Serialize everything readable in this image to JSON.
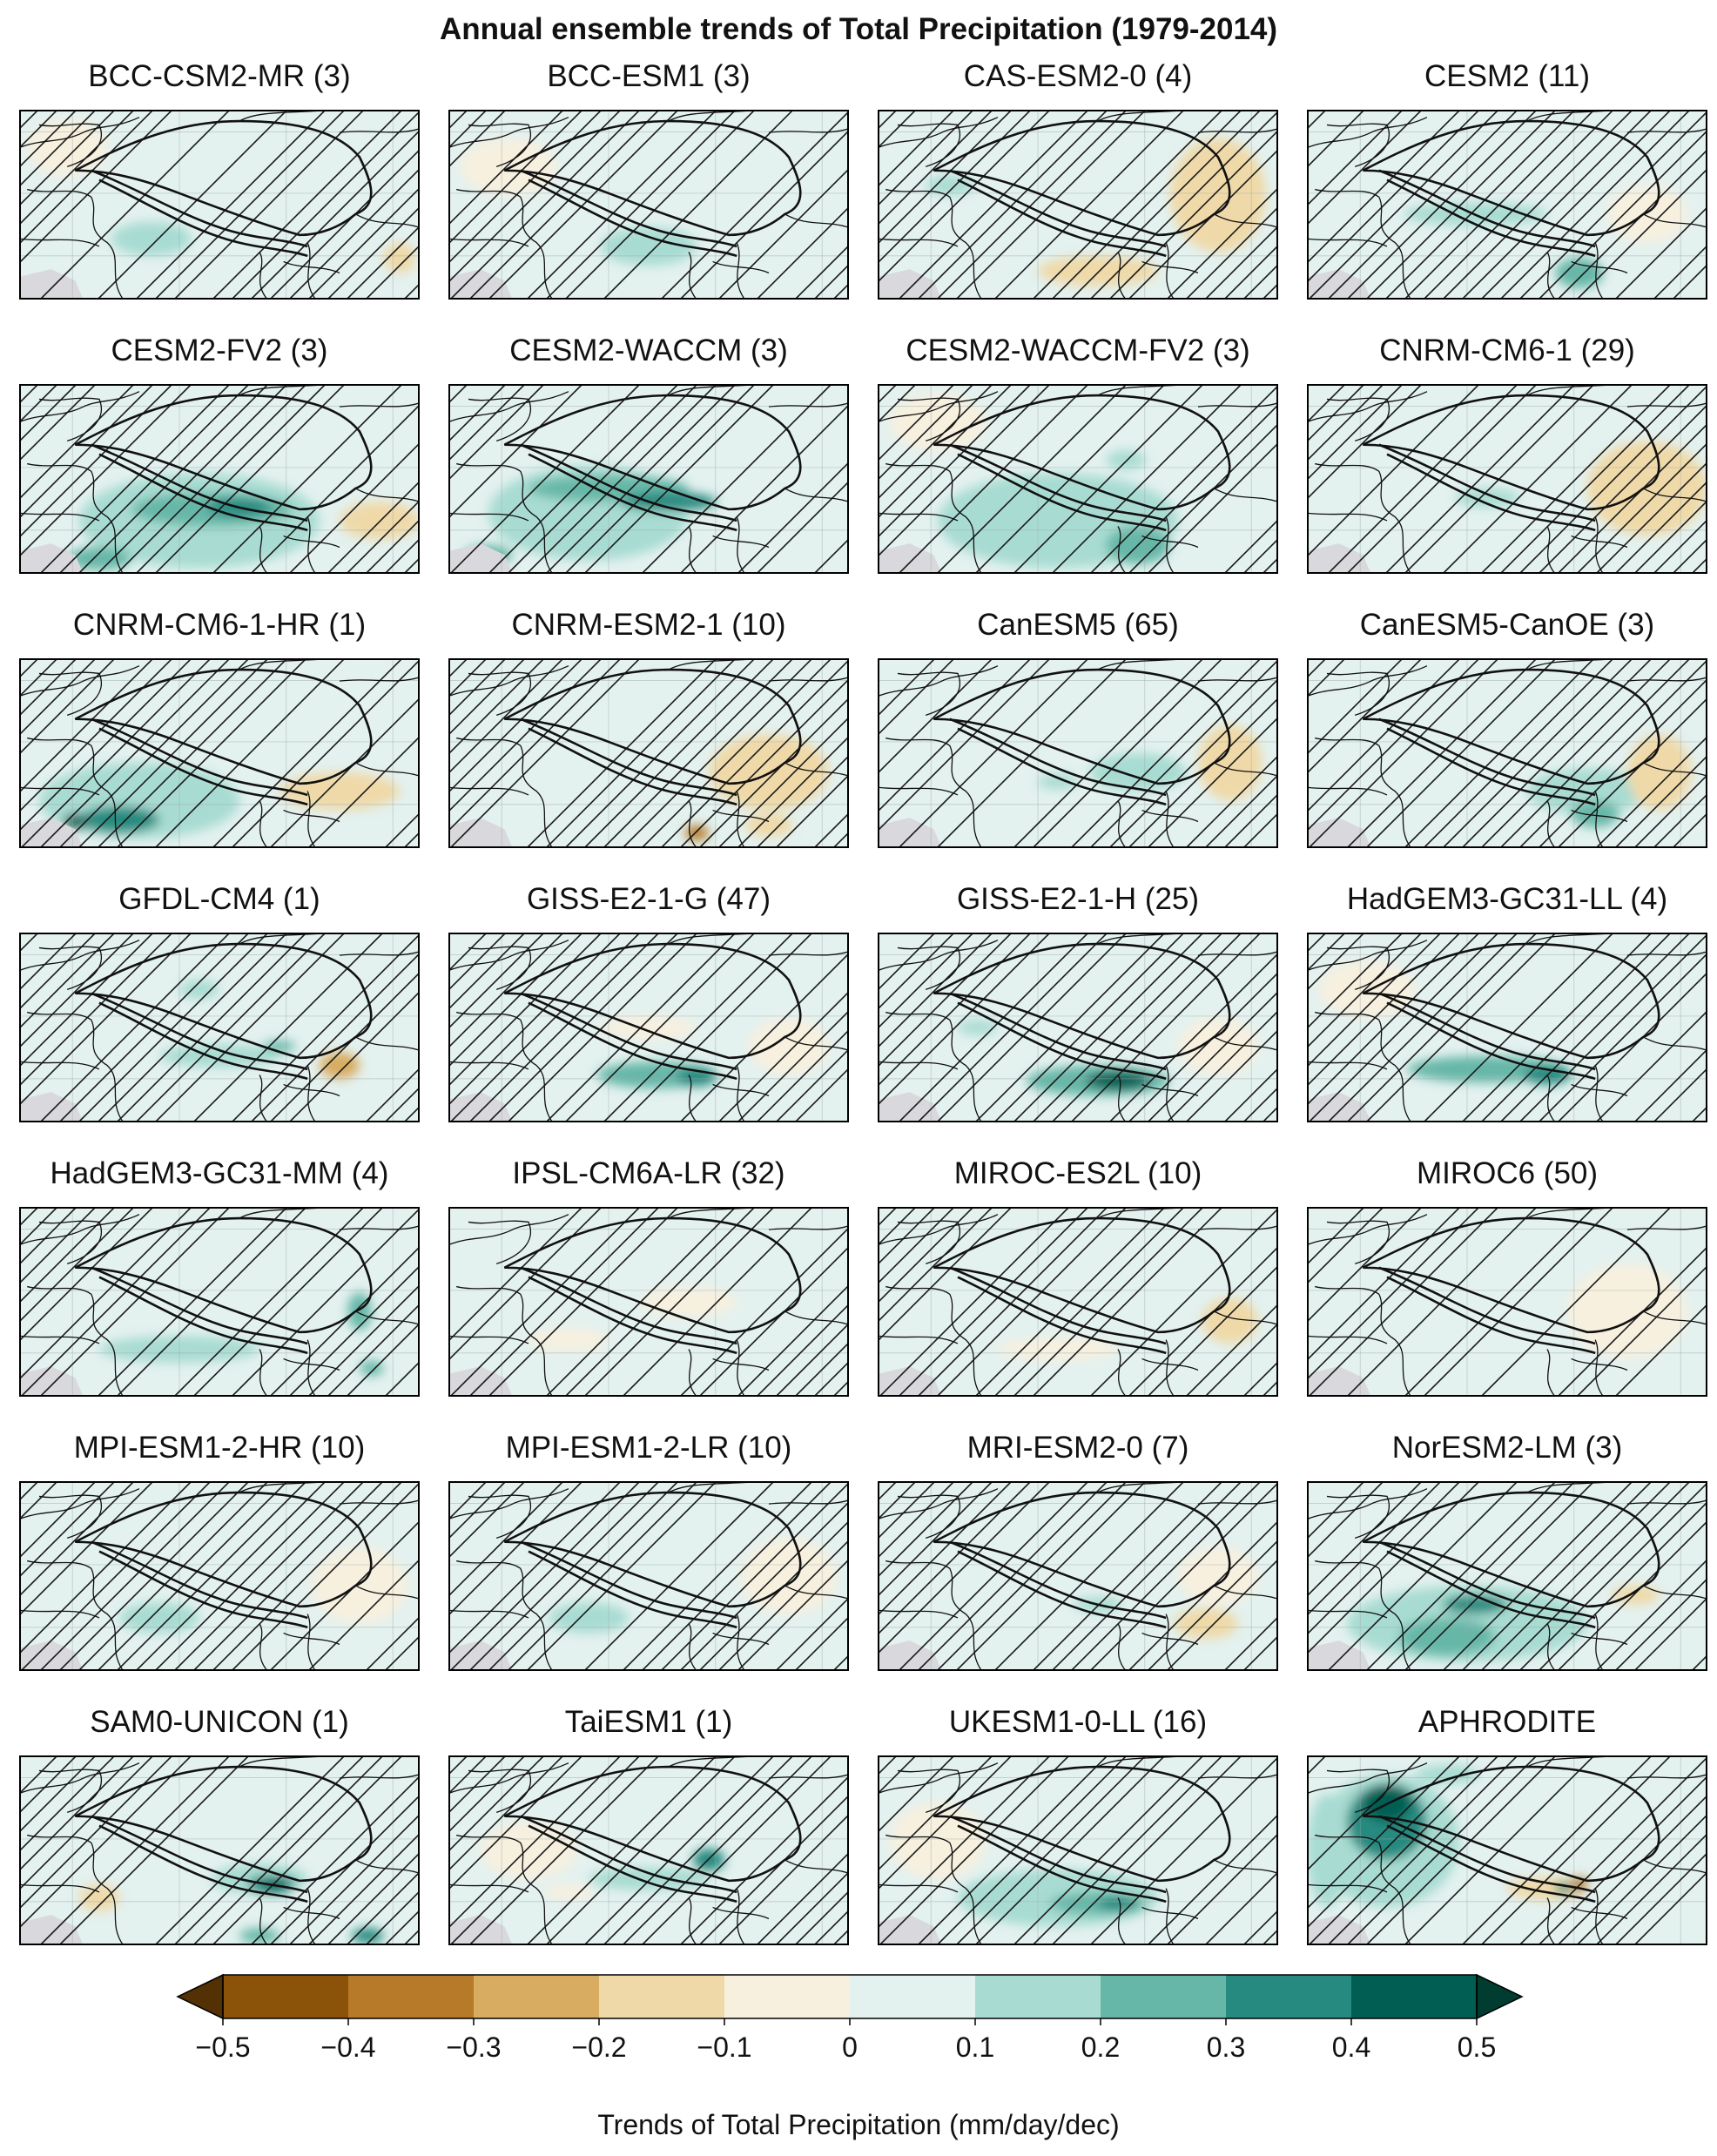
{
  "figure_title": "Annual ensemble trends of Total Precipitation (1979-2014)",
  "colorbar": {
    "label": "Trends of Total Precipitation (mm/day/dec)",
    "ticks": [
      "−0.5",
      "−0.4",
      "−0.3",
      "−0.2",
      "−0.1",
      "0",
      "0.1",
      "0.2",
      "0.3",
      "0.4",
      "0.5"
    ],
    "colors": [
      "#8a5309",
      "#b67a29",
      "#d8ac61",
      "#efd9a8",
      "#f7f0df",
      "#e3f1ef",
      "#a8dcd2",
      "#66b7a8",
      "#268a80",
      "#015e52"
    ],
    "under_color": "#543005",
    "over_color": "#003c30"
  },
  "chart_data": {
    "type": "map-panel-grid",
    "title": "Annual ensemble trends of Total Precipitation (1979-2014)",
    "variable": "Trends of Total Precipitation (mm/day/dec)",
    "period": "1979-2014",
    "levels": [
      -0.5,
      -0.4,
      -0.3,
      -0.2,
      -0.1,
      0,
      0.1,
      0.2,
      0.3,
      0.4,
      0.5
    ],
    "extend": "both",
    "panels": [
      {
        "model": "BCC-CSM2-MR",
        "members": 3,
        "hatch": 0.75,
        "features": [
          {
            "v": 0.12,
            "cx": 0.33,
            "cy": 0.68,
            "rx": 0.1,
            "ry": 0.09
          },
          {
            "v": -0.12,
            "cx": 0.95,
            "cy": 0.78,
            "rx": 0.04,
            "ry": 0.08
          },
          {
            "v": -0.05,
            "cx": 0.12,
            "cy": 0.2,
            "rx": 0.1,
            "ry": 0.15
          }
        ]
      },
      {
        "model": "BCC-ESM1",
        "members": 3,
        "hatch": 0.75,
        "features": [
          {
            "v": 0.12,
            "cx": 0.5,
            "cy": 0.72,
            "rx": 0.12,
            "ry": 0.1
          },
          {
            "v": -0.05,
            "cx": 0.15,
            "cy": 0.3,
            "rx": 0.12,
            "ry": 0.15
          }
        ]
      },
      {
        "model": "CAS-ESM2-0",
        "members": 4,
        "hatch": 0.85,
        "features": [
          {
            "v": -0.12,
            "cx": 0.85,
            "cy": 0.45,
            "rx": 0.12,
            "ry": 0.3
          },
          {
            "v": -0.12,
            "cx": 0.55,
            "cy": 0.85,
            "rx": 0.15,
            "ry": 0.08
          },
          {
            "v": 0.12,
            "cx": 0.18,
            "cy": 0.4,
            "rx": 0.06,
            "ry": 0.05
          }
        ]
      },
      {
        "model": "CESM2",
        "members": 11,
        "hatch": 0.8,
        "features": [
          {
            "v": 0.12,
            "cx": 0.42,
            "cy": 0.55,
            "rx": 0.18,
            "ry": 0.06
          },
          {
            "v": 0.22,
            "cx": 0.68,
            "cy": 0.86,
            "rx": 0.06,
            "ry": 0.08
          },
          {
            "v": -0.05,
            "cx": 0.85,
            "cy": 0.55,
            "rx": 0.1,
            "ry": 0.15
          }
        ]
      },
      {
        "model": "CESM2-FV2",
        "members": 3,
        "hatch": 0.7,
        "features": [
          {
            "v": 0.15,
            "cx": 0.45,
            "cy": 0.72,
            "rx": 0.3,
            "ry": 0.25
          },
          {
            "v": 0.28,
            "cx": 0.48,
            "cy": 0.66,
            "rx": 0.2,
            "ry": 0.09
          },
          {
            "v": 0.38,
            "cx": 0.55,
            "cy": 0.65,
            "rx": 0.08,
            "ry": 0.05
          },
          {
            "v": -0.15,
            "cx": 0.9,
            "cy": 0.72,
            "rx": 0.1,
            "ry": 0.1
          },
          {
            "v": 0.2,
            "cx": 0.2,
            "cy": 0.92,
            "rx": 0.08,
            "ry": 0.06
          }
        ]
      },
      {
        "model": "CESM2-WACCM",
        "members": 3,
        "hatch": 0.7,
        "features": [
          {
            "v": 0.15,
            "cx": 0.35,
            "cy": 0.68,
            "rx": 0.25,
            "ry": 0.25
          },
          {
            "v": 0.28,
            "cx": 0.4,
            "cy": 0.55,
            "rx": 0.2,
            "ry": 0.07
          },
          {
            "v": 0.32,
            "cx": 0.55,
            "cy": 0.62,
            "rx": 0.12,
            "ry": 0.05
          },
          {
            "v": 0.2,
            "cx": 0.1,
            "cy": 0.9,
            "rx": 0.06,
            "ry": 0.05
          }
        ]
      },
      {
        "model": "CESM2-WACCM-FV2",
        "members": 3,
        "hatch": 0.8,
        "features": [
          {
            "v": 0.15,
            "cx": 0.45,
            "cy": 0.72,
            "rx": 0.3,
            "ry": 0.25
          },
          {
            "v": 0.25,
            "cx": 0.65,
            "cy": 0.85,
            "rx": 0.08,
            "ry": 0.1
          },
          {
            "v": 0.12,
            "cx": 0.62,
            "cy": 0.4,
            "rx": 0.05,
            "ry": 0.05
          },
          {
            "v": -0.05,
            "cx": 0.15,
            "cy": 0.2,
            "rx": 0.12,
            "ry": 0.15
          }
        ]
      },
      {
        "model": "CNRM-CM6-1",
        "members": 29,
        "hatch": 0.8,
        "features": [
          {
            "v": -0.12,
            "cx": 0.85,
            "cy": 0.55,
            "rx": 0.15,
            "ry": 0.25
          },
          {
            "v": 0.12,
            "cx": 0.45,
            "cy": 0.6,
            "rx": 0.08,
            "ry": 0.05
          }
        ]
      },
      {
        "model": "CNRM-CM6-1-HR",
        "members": 1,
        "hatch": 0.75,
        "features": [
          {
            "v": 0.15,
            "cx": 0.3,
            "cy": 0.75,
            "rx": 0.25,
            "ry": 0.2
          },
          {
            "v": 0.3,
            "cx": 0.25,
            "cy": 0.85,
            "rx": 0.1,
            "ry": 0.07
          },
          {
            "v": 0.42,
            "cx": 0.14,
            "cy": 0.86,
            "rx": 0.03,
            "ry": 0.04
          },
          {
            "v": -0.12,
            "cx": 0.8,
            "cy": 0.7,
            "rx": 0.15,
            "ry": 0.1
          }
        ]
      },
      {
        "model": "CNRM-ESM2-1",
        "members": 10,
        "hatch": 0.8,
        "features": [
          {
            "v": -0.12,
            "cx": 0.8,
            "cy": 0.6,
            "rx": 0.15,
            "ry": 0.2
          },
          {
            "v": -0.35,
            "cx": 0.62,
            "cy": 0.92,
            "rx": 0.03,
            "ry": 0.04
          },
          {
            "v": -0.12,
            "cx": 0.8,
            "cy": 0.88,
            "rx": 0.06,
            "ry": 0.06
          }
        ]
      },
      {
        "model": "CanESM5",
        "members": 65,
        "hatch": 0.7,
        "features": [
          {
            "v": 0.15,
            "cx": 0.65,
            "cy": 0.6,
            "rx": 0.12,
            "ry": 0.1
          },
          {
            "v": 0.12,
            "cx": 0.45,
            "cy": 0.65,
            "rx": 0.05,
            "ry": 0.04
          },
          {
            "v": -0.12,
            "cx": 0.88,
            "cy": 0.55,
            "rx": 0.08,
            "ry": 0.2
          }
        ]
      },
      {
        "model": "CanESM5-CanOE",
        "members": 3,
        "hatch": 0.8,
        "features": [
          {
            "v": 0.15,
            "cx": 0.7,
            "cy": 0.7,
            "rx": 0.15,
            "ry": 0.12
          },
          {
            "v": 0.28,
            "cx": 0.72,
            "cy": 0.82,
            "rx": 0.06,
            "ry": 0.07
          },
          {
            "v": -0.12,
            "cx": 0.88,
            "cy": 0.6,
            "rx": 0.08,
            "ry": 0.2
          }
        ]
      },
      {
        "model": "GFDL-CM4",
        "members": 1,
        "hatch": 0.75,
        "features": [
          {
            "v": 0.15,
            "cx": 0.5,
            "cy": 0.65,
            "rx": 0.15,
            "ry": 0.06
          },
          {
            "v": 0.25,
            "cx": 0.65,
            "cy": 0.6,
            "rx": 0.04,
            "ry": 0.03
          },
          {
            "v": -0.25,
            "cx": 0.8,
            "cy": 0.7,
            "rx": 0.05,
            "ry": 0.07
          },
          {
            "v": 0.12,
            "cx": 0.45,
            "cy": 0.3,
            "rx": 0.05,
            "ry": 0.05
          }
        ]
      },
      {
        "model": "GISS-E2-1-G",
        "members": 47,
        "hatch": 0.65,
        "features": [
          {
            "v": 0.2,
            "cx": 0.52,
            "cy": 0.75,
            "rx": 0.15,
            "ry": 0.07
          },
          {
            "v": 0.35,
            "cx": 0.62,
            "cy": 0.76,
            "rx": 0.05,
            "ry": 0.05
          },
          {
            "v": -0.05,
            "cx": 0.5,
            "cy": 0.5,
            "rx": 0.12,
            "ry": 0.06
          },
          {
            "v": -0.05,
            "cx": 0.85,
            "cy": 0.6,
            "rx": 0.1,
            "ry": 0.15
          }
        ]
      },
      {
        "model": "GISS-E2-1-H",
        "members": 25,
        "hatch": 0.65,
        "features": [
          {
            "v": 0.2,
            "cx": 0.55,
            "cy": 0.78,
            "rx": 0.18,
            "ry": 0.08
          },
          {
            "v": 0.4,
            "cx": 0.6,
            "cy": 0.78,
            "rx": 0.08,
            "ry": 0.05
          },
          {
            "v": 0.12,
            "cx": 0.25,
            "cy": 0.5,
            "rx": 0.05,
            "ry": 0.04
          },
          {
            "v": -0.05,
            "cx": 0.85,
            "cy": 0.6,
            "rx": 0.1,
            "ry": 0.15
          }
        ]
      },
      {
        "model": "HadGEM3-GC31-LL",
        "members": 4,
        "hatch": 0.75,
        "features": [
          {
            "v": 0.2,
            "cx": 0.45,
            "cy": 0.72,
            "rx": 0.2,
            "ry": 0.07
          },
          {
            "v": 0.3,
            "cx": 0.6,
            "cy": 0.75,
            "rx": 0.06,
            "ry": 0.05
          },
          {
            "v": -0.05,
            "cx": 0.15,
            "cy": 0.3,
            "rx": 0.12,
            "ry": 0.15
          }
        ]
      },
      {
        "model": "HadGEM3-GC31-MM",
        "members": 4,
        "hatch": 0.7,
        "features": [
          {
            "v": 0.15,
            "cx": 0.4,
            "cy": 0.75,
            "rx": 0.2,
            "ry": 0.07
          },
          {
            "v": 0.2,
            "cx": 0.85,
            "cy": 0.55,
            "rx": 0.03,
            "ry": 0.1
          },
          {
            "v": 0.25,
            "cx": 0.88,
            "cy": 0.85,
            "rx": 0.03,
            "ry": 0.04
          }
        ]
      },
      {
        "model": "IPSL-CM6A-LR",
        "members": 32,
        "hatch": 0.7,
        "features": [
          {
            "v": -0.05,
            "cx": 0.6,
            "cy": 0.5,
            "rx": 0.12,
            "ry": 0.08
          },
          {
            "v": -0.05,
            "cx": 0.3,
            "cy": 0.7,
            "rx": 0.1,
            "ry": 0.06
          }
        ]
      },
      {
        "model": "MIROC-ES2L",
        "members": 10,
        "hatch": 0.7,
        "features": [
          {
            "v": -0.12,
            "cx": 0.88,
            "cy": 0.6,
            "rx": 0.07,
            "ry": 0.12
          },
          {
            "v": -0.05,
            "cx": 0.45,
            "cy": 0.75,
            "rx": 0.15,
            "ry": 0.06
          }
        ]
      },
      {
        "model": "MIROC6",
        "members": 50,
        "hatch": 0.65,
        "features": [
          {
            "v": -0.05,
            "cx": 0.8,
            "cy": 0.55,
            "rx": 0.15,
            "ry": 0.25
          }
        ]
      },
      {
        "model": "MPI-ESM1-2-HR",
        "members": 10,
        "hatch": 0.7,
        "features": [
          {
            "v": 0.12,
            "cx": 0.35,
            "cy": 0.72,
            "rx": 0.1,
            "ry": 0.08
          },
          {
            "v": -0.05,
            "cx": 0.85,
            "cy": 0.55,
            "rx": 0.12,
            "ry": 0.2
          }
        ]
      },
      {
        "model": "MPI-ESM1-2-LR",
        "members": 10,
        "hatch": 0.7,
        "features": [
          {
            "v": 0.12,
            "cx": 0.35,
            "cy": 0.72,
            "rx": 0.1,
            "ry": 0.08
          },
          {
            "v": -0.05,
            "cx": 0.85,
            "cy": 0.5,
            "rx": 0.12,
            "ry": 0.2
          }
        ]
      },
      {
        "model": "MRI-ESM2-0",
        "members": 7,
        "hatch": 0.7,
        "features": [
          {
            "v": 0.12,
            "cx": 0.55,
            "cy": 0.65,
            "rx": 0.06,
            "ry": 0.04
          },
          {
            "v": -0.12,
            "cx": 0.82,
            "cy": 0.75,
            "rx": 0.08,
            "ry": 0.08
          },
          {
            "v": -0.05,
            "cx": 0.85,
            "cy": 0.5,
            "rx": 0.1,
            "ry": 0.15
          }
        ]
      },
      {
        "model": "NorESM2-LM",
        "members": 3,
        "hatch": 0.75,
        "features": [
          {
            "v": 0.15,
            "cx": 0.4,
            "cy": 0.75,
            "rx": 0.3,
            "ry": 0.2
          },
          {
            "v": 0.22,
            "cx": 0.35,
            "cy": 0.82,
            "rx": 0.12,
            "ry": 0.1
          },
          {
            "v": 0.3,
            "cx": 0.42,
            "cy": 0.65,
            "rx": 0.08,
            "ry": 0.05
          },
          {
            "v": -0.12,
            "cx": 0.82,
            "cy": 0.6,
            "rx": 0.06,
            "ry": 0.05
          }
        ]
      },
      {
        "model": "SAM0-UNICON",
        "members": 1,
        "hatch": 0.75,
        "features": [
          {
            "v": 0.15,
            "cx": 0.6,
            "cy": 0.65,
            "rx": 0.12,
            "ry": 0.08
          },
          {
            "v": 0.35,
            "cx": 0.63,
            "cy": 0.68,
            "rx": 0.06,
            "ry": 0.05
          },
          {
            "v": 0.45,
            "cx": 0.64,
            "cy": 0.68,
            "rx": 0.03,
            "ry": 0.03
          },
          {
            "v": -0.2,
            "cx": 0.2,
            "cy": 0.75,
            "rx": 0.05,
            "ry": 0.07
          },
          {
            "v": 0.3,
            "cx": 0.87,
            "cy": 0.95,
            "rx": 0.04,
            "ry": 0.04
          },
          {
            "v": 0.2,
            "cx": 0.6,
            "cy": 0.95,
            "rx": 0.05,
            "ry": 0.04
          }
        ]
      },
      {
        "model": "TaiESM1",
        "members": 1,
        "hatch": 0.7,
        "features": [
          {
            "v": 0.15,
            "cx": 0.5,
            "cy": 0.65,
            "rx": 0.15,
            "ry": 0.06
          },
          {
            "v": 0.3,
            "cx": 0.65,
            "cy": 0.55,
            "rx": 0.04,
            "ry": 0.06
          },
          {
            "v": -0.05,
            "cx": 0.2,
            "cy": 0.5,
            "rx": 0.12,
            "ry": 0.15
          },
          {
            "v": -0.1,
            "cx": 0.3,
            "cy": 0.72,
            "rx": 0.06,
            "ry": 0.04
          }
        ]
      },
      {
        "model": "UKESM1-0-LL",
        "members": 16,
        "hatch": 0.7,
        "features": [
          {
            "v": 0.15,
            "cx": 0.45,
            "cy": 0.75,
            "rx": 0.25,
            "ry": 0.15
          },
          {
            "v": 0.25,
            "cx": 0.55,
            "cy": 0.78,
            "rx": 0.12,
            "ry": 0.06
          },
          {
            "v": 0.38,
            "cx": 0.6,
            "cy": 0.78,
            "rx": 0.05,
            "ry": 0.04
          },
          {
            "v": -0.05,
            "cx": 0.15,
            "cy": 0.45,
            "rx": 0.12,
            "ry": 0.2
          }
        ]
      },
      {
        "model": "APHRODITE",
        "members": null,
        "hatch": 0.6,
        "features": [
          {
            "v": 0.15,
            "cx": 0.2,
            "cy": 0.45,
            "rx": 0.18,
            "ry": 0.35
          },
          {
            "v": 0.3,
            "cx": 0.2,
            "cy": 0.35,
            "rx": 0.1,
            "ry": 0.2
          },
          {
            "v": 0.45,
            "cx": 0.2,
            "cy": 0.25,
            "rx": 0.06,
            "ry": 0.1
          },
          {
            "v": 0.12,
            "cx": 0.05,
            "cy": 0.5,
            "rx": 0.05,
            "ry": 0.3
          },
          {
            "v": -0.15,
            "cx": 0.6,
            "cy": 0.7,
            "rx": 0.1,
            "ry": 0.06
          },
          {
            "v": -0.35,
            "cx": 0.68,
            "cy": 0.68,
            "rx": 0.02,
            "ry": 0.04
          },
          {
            "v": 0.35,
            "cx": 0.64,
            "cy": 0.7,
            "rx": 0.02,
            "ry": 0.03
          },
          {
            "v": 0.15,
            "cx": 0.35,
            "cy": 0.1,
            "rx": 0.08,
            "ry": 0.05
          }
        ]
      }
    ]
  }
}
